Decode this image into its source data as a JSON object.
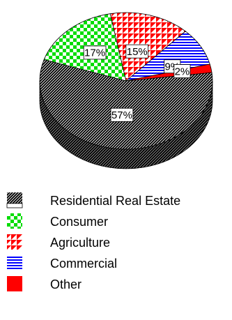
{
  "chart_data": {
    "type": "pie",
    "title": "",
    "slices": [
      {
        "name": "Residential Real Estate",
        "value": 57,
        "label": "57%",
        "color": "#000000",
        "pattern": "diagonal-hatch"
      },
      {
        "name": "Consumer",
        "value": 17,
        "label": "17%",
        "color": "#00cc00",
        "pattern": "checkerboard"
      },
      {
        "name": "Agriculture",
        "value": 15,
        "label": "15%",
        "color": "#ff0000",
        "pattern": "triangles"
      },
      {
        "name": "Commercial",
        "value": 9,
        "label": "9%",
        "color": "#0000ff",
        "pattern": "horizontal-lines"
      },
      {
        "name": "Other",
        "value": 2,
        "label": "2%",
        "color": "#ff0000",
        "pattern": "solid"
      }
    ],
    "style": "3d-tilted",
    "legend_position": "bottom-left",
    "grid": false
  }
}
